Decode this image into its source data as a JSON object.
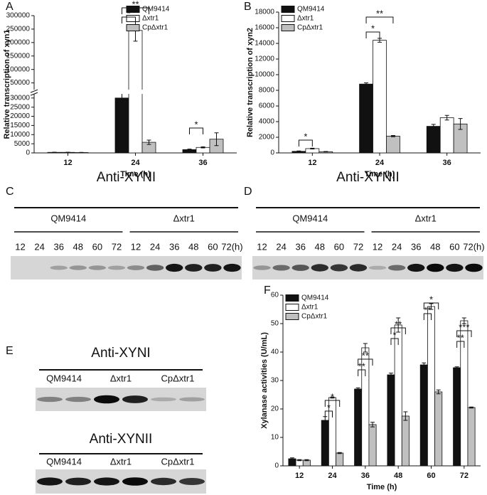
{
  "chart_data": [
    {
      "type": "bar",
      "label": "A",
      "ylabel": "Relative transcription of xyn1",
      "xlabel": "Time (h)",
      "categories": [
        "12",
        "24",
        "36"
      ],
      "series": [
        {
          "name": "QM9414",
          "color": "#111111",
          "values": [
            300,
            30000,
            1800
          ],
          "errors": [
            100,
            3000,
            300
          ]
        },
        {
          "name": "Δxtr1",
          "color": "#ffffff",
          "values": [
            300,
            245000,
            3000
          ],
          "errors": [
            100,
            40000,
            300
          ]
        },
        {
          "name": "CpΔxtr1",
          "color": "#c0c0c0",
          "values": [
            200,
            5800,
            7500
          ],
          "errors": [
            100,
            1200,
            3500
          ]
        }
      ],
      "ylim": [
        0,
        300000
      ],
      "yticks": [
        0,
        5000,
        10000,
        15000,
        20000,
        25000,
        30000,
        50000,
        100000,
        150000,
        200000,
        250000,
        300000
      ],
      "axis_break": true,
      "annotations": [
        "*",
        "**",
        "*"
      ]
    },
    {
      "type": "bar",
      "label": "B",
      "ylabel": "Relative transcription of xyn2",
      "xlabel": "Time (h)",
      "categories": [
        "12",
        "24",
        "36"
      ],
      "series": [
        {
          "name": "QM9414",
          "color": "#111111",
          "values": [
            200,
            8800,
            3400
          ],
          "errors": [
            50,
            150,
            250
          ]
        },
        {
          "name": "Δxtr1",
          "color": "#ffffff",
          "values": [
            550,
            14400,
            4500
          ],
          "errors": [
            50,
            250,
            300
          ]
        },
        {
          "name": "CpΔxtr1",
          "color": "#c0c0c0",
          "values": [
            150,
            2150,
            3700
          ],
          "errors": [
            30,
            80,
            700
          ]
        }
      ],
      "ylim": [
        0,
        18000
      ],
      "yticks": [
        0,
        2000,
        4000,
        6000,
        8000,
        10000,
        12000,
        14000,
        16000,
        18000
      ],
      "annotations": [
        "*",
        "*",
        "**"
      ]
    },
    {
      "type": "bar",
      "label": "F",
      "ylabel": "Xylanase activities (U/mL)",
      "xlabel": "Time (h)",
      "categories": [
        "12",
        "24",
        "36",
        "48",
        "60",
        "72"
      ],
      "series": [
        {
          "name": "QM9414",
          "color": "#111111",
          "values": [
            2.5,
            16,
            27,
            32,
            35.5,
            34.5
          ],
          "errors": [
            0.3,
            1.3,
            0.4,
            0.6,
            0.7,
            0.3
          ]
        },
        {
          "name": "Δxtr1",
          "color": "#ffffff",
          "values": [
            2,
            24,
            41.5,
            49.5,
            56,
            51
          ],
          "errors": [
            0.2,
            0.2,
            1.5,
            2.5,
            1,
            1
          ]
        },
        {
          "name": "CpΔxtr1",
          "color": "#c0c0c0",
          "values": [
            2,
            4.5,
            14.5,
            17.5,
            26,
            20.5
          ],
          "errors": [
            0.2,
            0.2,
            0.8,
            1.5,
            0.7,
            0.2
          ]
        }
      ],
      "ylim": [
        0,
        60
      ],
      "yticks": [
        0,
        10,
        20,
        30,
        40,
        50,
        60
      ],
      "annotations": [
        "*",
        "*",
        "**",
        "**",
        "*",
        "**",
        "**",
        "*",
        "**",
        "***"
      ]
    }
  ],
  "blots": [
    {
      "label": "C",
      "title": "Anti-XYNI",
      "groups": [
        "QM9414",
        "Δxtr1"
      ],
      "lanes": [
        "12",
        "24",
        "36",
        "48",
        "60",
        "72",
        "12",
        "24",
        "36",
        "48",
        "60",
        "72(h)"
      ]
    },
    {
      "label": "D",
      "title": "Anti-XYNII",
      "groups": [
        "QM9414",
        "Δxtr1"
      ],
      "lanes": [
        "12",
        "24",
        "36",
        "48",
        "60",
        "72",
        "12",
        "24",
        "36",
        "48",
        "60",
        "72(h)"
      ]
    },
    {
      "label": "E",
      "title": "Anti-XYNI",
      "groups": [
        "QM9414",
        "Δxtr1",
        "CpΔxtr1"
      ]
    },
    {
      "title": "Anti-XYNII",
      "groups": [
        "QM9414",
        "Δxtr1",
        "CpΔxtr1"
      ]
    }
  ]
}
